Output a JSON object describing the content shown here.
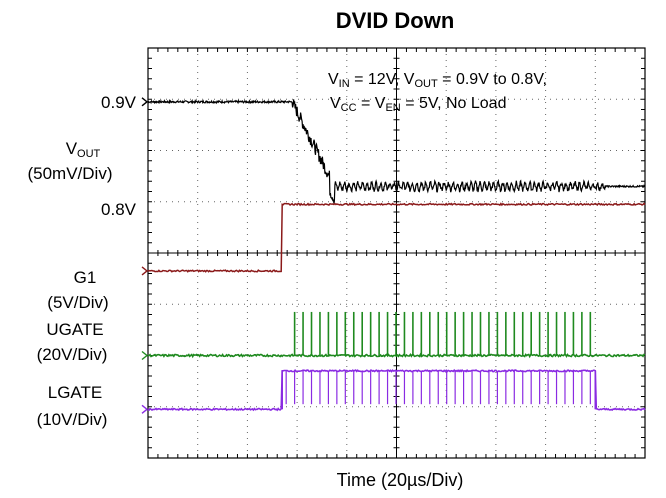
{
  "chart_data": {
    "type": "line",
    "title": "DVID Down",
    "xlabel": "Time (20µs/Div)",
    "x_divisions": 10,
    "y_divisions": 8,
    "grid": true,
    "conditions": {
      "line1": {
        "vin": "V",
        "vin_sub": "IN",
        "vin_val": " = 12V, ",
        "vout": "V",
        "vout_sub": "OUT",
        "vout_val": " = 0.9V to 0.8V,"
      },
      "line2": {
        "vcc": "V",
        "vcc_sub": "CC",
        "mid": " = V",
        "ven_sub": "EN",
        "end": " = 5V, No Load"
      }
    },
    "channels": [
      {
        "name": "VOUT",
        "label_main": "V",
        "label_sub": "OUT",
        "scale": "(50mV/Div)",
        "color": "#000000",
        "level_labels": [
          "0.9V",
          "0.8V"
        ],
        "levels_div": {
          "high": 6.95,
          "low": 5.3
        },
        "transition_start_div": 2.9,
        "settle_div": 3.75,
        "ripple_until_div": 9.2
      },
      {
        "name": "G1",
        "scale": "(5V/Div)",
        "color": "#8b1a1a",
        "levels_div": {
          "low": 3.65,
          "high": 4.95
        },
        "step_at_div": 2.7
      },
      {
        "name": "UGATE",
        "scale": "(20V/Div)",
        "color": "#1f8a1f",
        "levels_div": {
          "base": 2.0,
          "pulse": 2.85
        },
        "switching_div": [
          2.95,
          9.0
        ]
      },
      {
        "name": "LGATE",
        "scale": "(10V/Div)",
        "color": "#8a2be2",
        "levels_div": {
          "low": 0.95,
          "high": 1.7
        },
        "on_div": [
          2.7,
          9.0
        ]
      }
    ]
  }
}
